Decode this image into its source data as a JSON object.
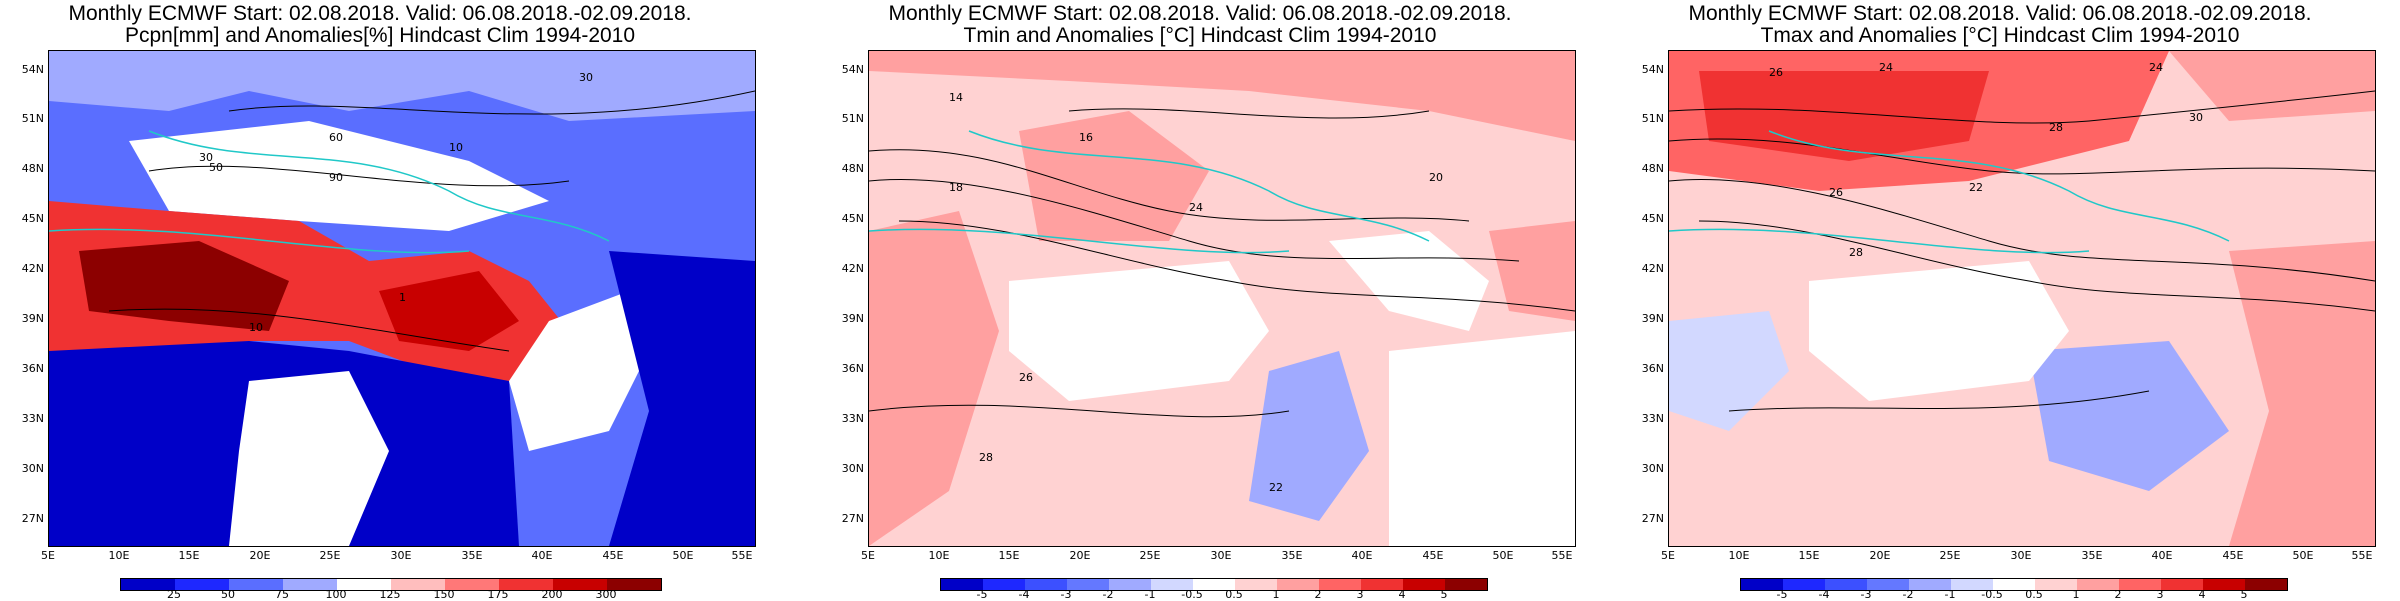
{
  "panels": [
    {
      "title1": "Monthly ECMWF Start: 02.08.2018. Valid: 06.08.2018.-02.09.2018.",
      "title2": "Pcpn[mm] and Anomalies[%] Hindcast Clim 1994-2010",
      "colorbar": {
        "labels": [
          "25",
          "50",
          "75",
          "100",
          "125",
          "150",
          "175",
          "200",
          "300"
        ],
        "colors": [
          "#0000c8",
          "#1e28ff",
          "#5a6eff",
          "#a0aaff",
          "#ffffff",
          "#ffbebe",
          "#ff7878",
          "#f03232",
          "#c80000",
          "#8c0000"
        ]
      },
      "contour_labels": [
        "30",
        "60",
        "90",
        "10",
        "1",
        "30",
        "50",
        "10"
      ]
    },
    {
      "title1": "Monthly ECMWF Start: 02.08.2018. Valid: 06.08.2018.-02.09.2018.",
      "title2": "Tmin and Anomalies [°C] Hindcast Clim 1994-2010",
      "colorbar": {
        "labels": [
          "-5",
          "-4",
          "-3",
          "-2",
          "-1",
          "-0.5",
          "0.5",
          "1",
          "2",
          "3",
          "4",
          "5"
        ],
        "colors": [
          "#0000c8",
          "#1e28ff",
          "#3c50ff",
          "#6478ff",
          "#a0aaff",
          "#d2d8ff",
          "#ffffff",
          "#ffd2d2",
          "#ffa0a0",
          "#ff6464",
          "#f03232",
          "#c80000",
          "#8c0000"
        ]
      },
      "contour_labels": [
        "14",
        "16",
        "18",
        "20",
        "22",
        "24",
        "26",
        "28"
      ]
    },
    {
      "title1": "Monthly ECMWF Start: 02.08.2018. Valid: 06.08.2018.-02.09.2018.",
      "title2": "Tmax and Anomalies [°C] Hindcast Clim 1994-2010",
      "colorbar": {
        "labels": [
          "-5",
          "-4",
          "-3",
          "-2",
          "-1",
          "-0.5",
          "0.5",
          "1",
          "2",
          "3",
          "4",
          "5"
        ],
        "colors": [
          "#0000c8",
          "#1e28ff",
          "#3c50ff",
          "#6478ff",
          "#a0aaff",
          "#d2d8ff",
          "#ffffff",
          "#ffd2d2",
          "#ffa0a0",
          "#ff6464",
          "#f03232",
          "#c80000",
          "#8c0000"
        ]
      },
      "contour_labels": [
        "24",
        "26",
        "28",
        "30",
        "22",
        "24",
        "26",
        "28"
      ]
    }
  ],
  "lat_labels": [
    "54N",
    "51N",
    "48N",
    "45N",
    "42N",
    "39N",
    "36N",
    "33N",
    "30N",
    "27N"
  ],
  "lon_labels": [
    "5E",
    "10E",
    "15E",
    "20E",
    "25E",
    "30E",
    "35E",
    "40E",
    "45E",
    "50E",
    "55E"
  ]
}
